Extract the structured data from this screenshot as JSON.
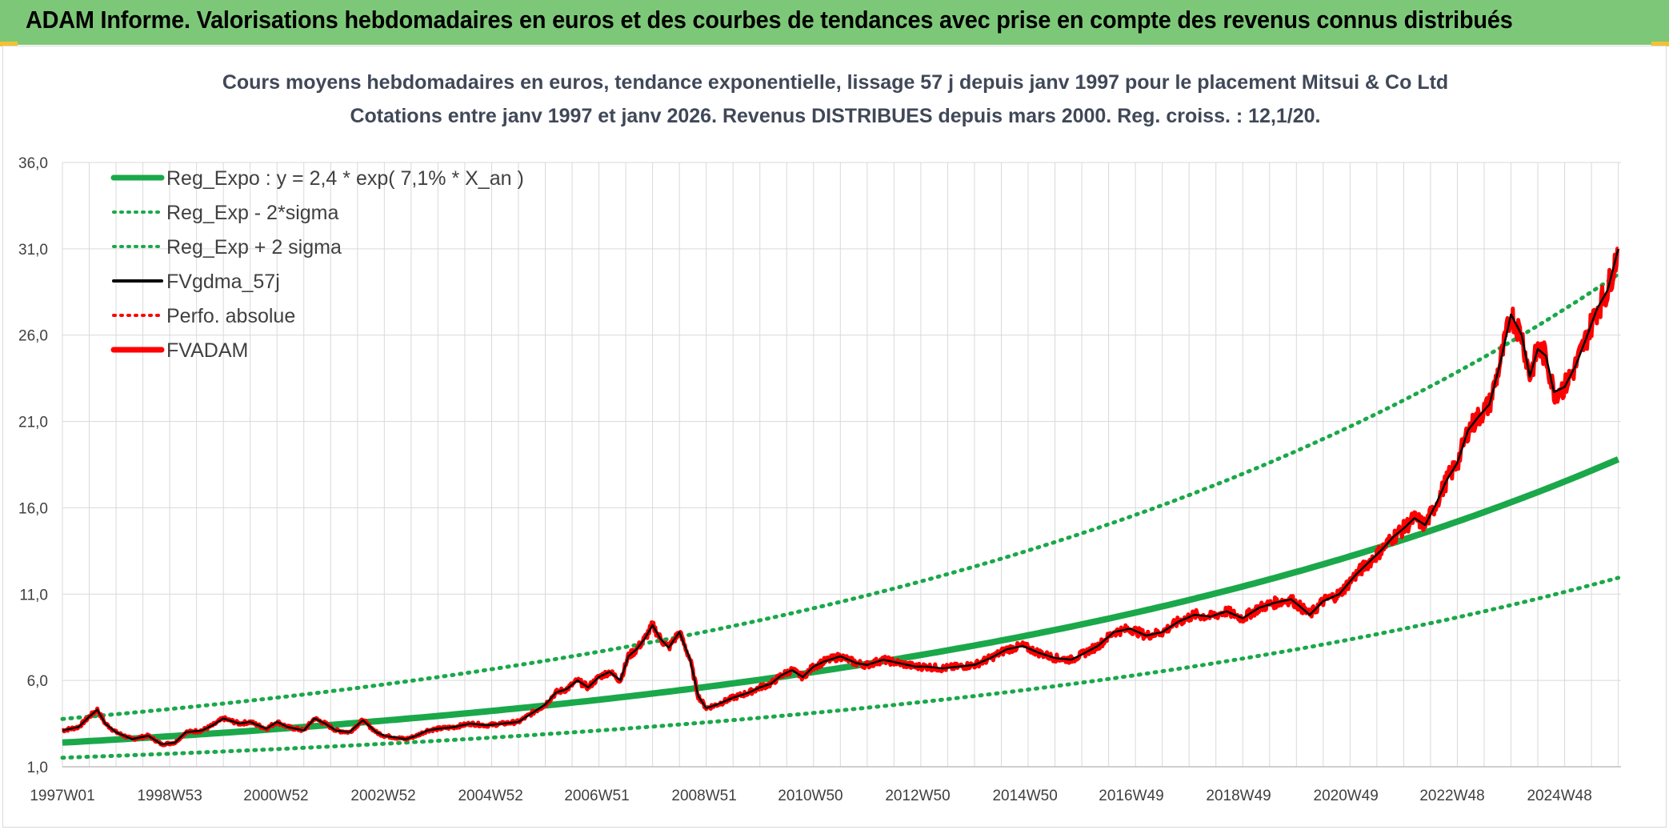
{
  "banner": {
    "title": "ADAM Informe. Valorisations hebdomadaires en euros et des courbes de tendances avec prise en compte des revenus connus distribués"
  },
  "colors": {
    "banner_bg": "#7dc878",
    "reg_green": "#1aa84a",
    "fvadam_red": "#ff0000",
    "fvgdma_black": "#000000",
    "perfo_red": "#ff0000",
    "grid": "#d9d9d9"
  },
  "chart_data": {
    "type": "line",
    "title": "Cours moyens hebdomadaires en euros, tendance exponentielle, lissage 57 j depuis janv 1997 pour le placement Mitsui & Co Ltd",
    "subtitle": "Cotations entre janv 1997 et janv 2026. Revenus DISTRIBUES depuis mars 2000. Reg. croiss. : 12,1/20.",
    "xlabel": "",
    "ylabel": "",
    "ylim": [
      1.0,
      36.0
    ],
    "y_ticks": [
      "1,0",
      "6,0",
      "11,0",
      "16,0",
      "21,0",
      "26,0",
      "31,0",
      "36,0"
    ],
    "x_range": [
      1997.0,
      2026.05
    ],
    "x_tick_labels": [
      "1997W01",
      "1998W53",
      "2000W52",
      "2002W52",
      "2004W52",
      "2006W51",
      "2008W51",
      "2010W50",
      "2012W50",
      "2014W50",
      "2016W49",
      "2018W49",
      "2020W49",
      "2022W48",
      "2024W48"
    ],
    "legend_position": "top-left",
    "legend": [
      {
        "key": "reg_expo",
        "label": "Reg_Expo : y = 2,4 * exp( 7,1% *  X_an )",
        "style": "solid-thick",
        "color": "#1aa84a"
      },
      {
        "key": "reg_minus",
        "label": "Reg_Exp - 2*sigma",
        "style": "dotted",
        "color": "#1aa84a"
      },
      {
        "key": "reg_plus",
        "label": "Reg_Exp + 2 sigma",
        "style": "dotted",
        "color": "#1aa84a"
      },
      {
        "key": "fvgdma",
        "label": "FVgdma_57j",
        "style": "solid",
        "color": "#000000"
      },
      {
        "key": "perfo",
        "label": "Perfo. absolue",
        "style": "dotted",
        "color": "#ff0000"
      },
      {
        "key": "fvadam",
        "label": "FVADAM",
        "style": "solid-thick",
        "color": "#ff0000"
      }
    ],
    "regression": {
      "a": 2.4,
      "rate": 0.071,
      "start_year": 1997.0,
      "minus_factor": 0.635,
      "plus_factor": 1.57
    },
    "series": [
      {
        "name": "FVADAM",
        "x": [
          1997.0,
          1997.3,
          1997.5,
          1997.65,
          1997.8,
          1998.0,
          1998.3,
          1998.6,
          1998.85,
          1999.1,
          1999.3,
          1999.6,
          1999.8,
          2000.0,
          2000.3,
          2000.5,
          2000.8,
          2001.0,
          2001.2,
          2001.5,
          2001.7,
          2001.9,
          2002.1,
          2002.35,
          2002.6,
          2002.85,
          2003.0,
          2003.2,
          2003.4,
          2003.6,
          2003.8,
          2004.0,
          2004.3,
          2004.6,
          2004.9,
          2005.2,
          2005.5,
          2005.8,
          2006.0,
          2006.2,
          2006.4,
          2006.6,
          2006.8,
          2007.0,
          2007.2,
          2007.4,
          2007.55,
          2007.7,
          2007.85,
          2008.0,
          2008.15,
          2008.3,
          2008.5,
          2008.7,
          2008.85,
          2009.0,
          2009.2,
          2009.5,
          2009.8,
          2010.0,
          2010.2,
          2010.4,
          2010.6,
          2010.8,
          2011.0,
          2011.2,
          2011.5,
          2011.8,
          2012.0,
          2012.3,
          2012.6,
          2012.9,
          2013.1,
          2013.4,
          2013.7,
          2014.0,
          2014.3,
          2014.6,
          2014.9,
          2015.2,
          2015.5,
          2015.8,
          2016.0,
          2016.3,
          2016.6,
          2016.9,
          2017.2,
          2017.5,
          2017.8,
          2018.1,
          2018.4,
          2018.7,
          2019.0,
          2019.3,
          2019.6,
          2019.9,
          2020.1,
          2020.25,
          2020.5,
          2020.8,
          2021.1,
          2021.4,
          2021.6,
          2021.8,
          2022.0,
          2022.2,
          2022.4,
          2022.6,
          2022.8,
          2023.0,
          2023.2,
          2023.4,
          2023.6,
          2023.8,
          2024.0,
          2024.2,
          2024.35,
          2024.5,
          2024.65,
          2024.8,
          2025.0,
          2025.2,
          2025.4,
          2025.6,
          2025.8,
          2026.0
        ],
        "values": [
          3.1,
          3.3,
          3.9,
          4.3,
          3.5,
          3.0,
          2.6,
          2.8,
          2.3,
          2.4,
          3.0,
          3.1,
          3.4,
          3.8,
          3.5,
          3.6,
          3.2,
          3.6,
          3.3,
          3.1,
          3.8,
          3.5,
          3.1,
          3.0,
          3.7,
          3.0,
          2.8,
          2.7,
          2.6,
          2.8,
          3.1,
          3.2,
          3.3,
          3.5,
          3.4,
          3.5,
          3.6,
          4.2,
          4.6,
          5.3,
          5.5,
          6.0,
          5.6,
          6.2,
          6.5,
          6.0,
          7.4,
          7.8,
          8.4,
          9.2,
          8.4,
          7.9,
          8.8,
          7.2,
          5.1,
          4.4,
          4.6,
          5.0,
          5.3,
          5.6,
          5.8,
          6.3,
          6.6,
          6.2,
          6.8,
          7.1,
          7.4,
          7.0,
          6.9,
          7.2,
          7.0,
          6.8,
          6.8,
          6.7,
          6.8,
          6.9,
          7.3,
          7.8,
          8.0,
          7.6,
          7.3,
          7.2,
          7.5,
          8.0,
          8.8,
          9.0,
          8.6,
          8.8,
          9.4,
          9.8,
          9.7,
          10.0,
          9.6,
          10.2,
          10.5,
          10.7,
          10.2,
          9.8,
          10.6,
          11.0,
          12.1,
          13.0,
          13.6,
          14.3,
          14.8,
          15.4,
          15.0,
          16.2,
          17.6,
          18.6,
          20.5,
          21.3,
          22.0,
          24.4,
          27.2,
          26.0,
          23.6,
          25.2,
          24.8,
          22.7,
          23.0,
          24.2,
          25.8,
          27.5,
          28.6,
          31.0
        ]
      }
    ],
    "fvgdma_note": "smoothed 57-day moving average of FVADAM"
  }
}
